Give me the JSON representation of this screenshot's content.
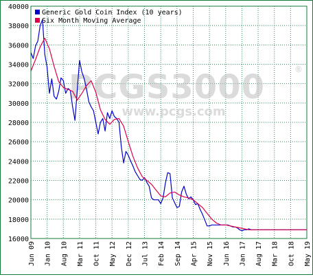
{
  "chart_data": {
    "type": "line",
    "title": "",
    "xlabel": "",
    "ylabel": "",
    "ylim": [
      16000,
      40000
    ],
    "yticks": [
      16000,
      18000,
      20000,
      22000,
      24000,
      26000,
      28000,
      30000,
      32000,
      34000,
      36000,
      38000,
      40000
    ],
    "ytick_labels": [
      "16000",
      "18000",
      "20000",
      "22000",
      "24000",
      "26000",
      "28000",
      "30000",
      "32000",
      "34000",
      "36000",
      "38000",
      "40000"
    ],
    "xlim": [
      0,
      119
    ],
    "xticks": [
      0,
      7,
      14,
      21,
      28,
      35,
      42,
      49,
      56,
      63,
      70,
      77,
      84,
      91,
      98,
      105,
      112,
      119
    ],
    "xtick_labels": [
      "Jun 09",
      "Jan 10",
      "Aug 10",
      "Mar 11",
      "Oct 11",
      "May 12",
      "Dec 12",
      "Jul 13",
      "Feb 14",
      "Sep 14",
      "Apr 15",
      "Nov 15",
      "Jun 16",
      "Jan 17",
      "Aug 17",
      "Mar 18",
      "Oct 18",
      "May 19"
    ],
    "grid": true,
    "legend_position": "top-left",
    "watermark": {
      "main": "PCGS3000",
      "registered": "®",
      "sub": "www.pcgs.com"
    },
    "series": [
      {
        "name": "Generic Gold Coin Index (10 years)",
        "color": "#0000cc",
        "x": [
          0,
          1,
          2,
          3,
          4,
          5,
          6,
          7,
          8,
          9,
          10,
          11,
          12,
          13,
          14,
          15,
          16,
          17,
          18,
          19,
          20,
          21,
          22,
          23,
          24,
          25,
          26,
          27,
          28,
          29,
          30,
          31,
          32,
          33,
          34,
          35,
          36,
          37,
          38,
          39,
          40,
          41,
          42,
          43,
          44,
          45,
          46,
          47,
          48,
          49,
          50,
          51,
          52,
          53,
          54,
          55,
          56,
          57,
          58,
          59,
          60,
          61,
          62,
          63,
          64,
          65,
          66,
          67,
          68,
          69,
          70,
          71,
          72,
          73,
          74,
          75,
          76,
          77,
          78,
          79,
          80,
          81,
          82,
          83,
          84,
          85,
          86,
          87,
          88,
          89,
          90,
          91,
          92,
          93,
          94,
          95,
          96,
          97,
          98,
          99,
          100,
          101,
          102,
          103,
          104,
          105,
          106,
          107,
          108,
          109,
          110,
          111,
          112,
          113,
          114,
          115,
          116,
          117,
          118,
          119
        ],
        "values": [
          35200,
          34600,
          35900,
          36400,
          38000,
          38600,
          35000,
          33700,
          31000,
          32500,
          30700,
          30400,
          31200,
          32600,
          32300,
          31000,
          31500,
          31300,
          29600,
          28200,
          31400,
          34400,
          33200,
          32500,
          31400,
          30100,
          29600,
          29200,
          28000,
          26800,
          28000,
          28400,
          27100,
          29000,
          28400,
          29200,
          28600,
          28400,
          28000,
          25500,
          23800,
          25000,
          24600,
          24000,
          23500,
          22900,
          22500,
          22100,
          22000,
          22300,
          21800,
          21400,
          20200,
          20000,
          20000,
          20000,
          19600,
          20200,
          21700,
          22800,
          22700,
          20200,
          19700,
          19200,
          19300,
          20800,
          21400,
          20600,
          20100,
          20300,
          20000,
          19500,
          19600,
          19000,
          18500,
          17900,
          17300,
          17300,
          17400,
          17400,
          17400,
          17400,
          17400,
          17400,
          17400,
          17400,
          17300,
          17200,
          17200,
          17100,
          16900,
          16800,
          16900,
          16900,
          17000,
          16900,
          16900,
          16900,
          16900,
          16900,
          16900,
          16900,
          16900,
          16900,
          16900,
          16900,
          16900,
          16900,
          16900,
          16900,
          16900,
          16900,
          16900,
          16900,
          16900,
          16900,
          16900,
          16900,
          16900,
          16900
        ]
      },
      {
        "name": "Six Month Moving Average",
        "color": "#e0004a",
        "x": [
          0,
          2,
          4,
          6,
          8,
          10,
          12,
          14,
          16,
          18,
          20,
          22,
          24,
          26,
          28,
          30,
          32,
          34,
          36,
          38,
          40,
          42,
          44,
          46,
          48,
          50,
          52,
          54,
          56,
          58,
          60,
          62,
          64,
          66,
          68,
          70,
          72,
          74,
          76,
          78,
          80,
          82,
          84,
          86,
          88,
          90,
          92,
          94,
          96,
          98,
          100,
          102,
          104,
          106,
          108,
          110,
          112,
          114,
          116,
          118,
          119
        ],
        "values": [
          33300,
          34500,
          35800,
          36700,
          35600,
          33800,
          32200,
          31600,
          31400,
          31200,
          30300,
          31000,
          31800,
          32300,
          31100,
          29300,
          28300,
          27800,
          28300,
          28400,
          27600,
          26000,
          24500,
          23300,
          22400,
          22000,
          21600,
          21000,
          20400,
          20300,
          20700,
          20800,
          20500,
          20300,
          20200,
          20000,
          19600,
          19200,
          18600,
          18000,
          17600,
          17400,
          17400,
          17300,
          17200,
          17100,
          17000,
          16900,
          16900,
          16900,
          16900,
          16900,
          16900,
          16900,
          16900,
          16900,
          16900,
          16900,
          16900,
          16900,
          16900
        ]
      }
    ]
  }
}
